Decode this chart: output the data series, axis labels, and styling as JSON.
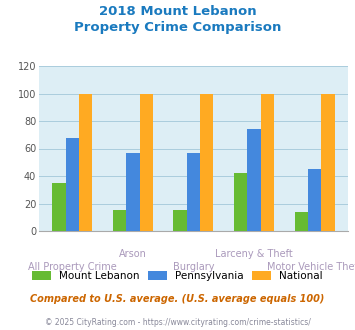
{
  "title_line1": "2018 Mount Lebanon",
  "title_line2": "Property Crime Comparison",
  "title_color": "#1a7abf",
  "categories": [
    "All Property Crime",
    "Arson",
    "Burglary",
    "Larceny & Theft",
    "Motor Vehicle Theft"
  ],
  "series": {
    "Mount Lebanon": [
      35,
      15,
      15,
      42,
      14
    ],
    "Pennsylvania": [
      68,
      57,
      57,
      74,
      45
    ],
    "National": [
      100,
      100,
      100,
      100,
      100
    ]
  },
  "colors": {
    "Mount Lebanon": "#66bb33",
    "Pennsylvania": "#4488dd",
    "National": "#ffaa22"
  },
  "ylim": [
    0,
    120
  ],
  "yticks": [
    0,
    20,
    40,
    60,
    80,
    100,
    120
  ],
  "plot_bg_color": "#ddeef5",
  "grid_color": "#aaccdd",
  "footnote1": "Compared to U.S. average. (U.S. average equals 100)",
  "footnote2": "© 2025 CityRating.com - https://www.cityrating.com/crime-statistics/",
  "footnote1_color": "#cc6600",
  "footnote2_color": "#888899",
  "label_color": "#aa99bb",
  "xlabel_fontsize": 7.0,
  "bar_width": 0.22
}
